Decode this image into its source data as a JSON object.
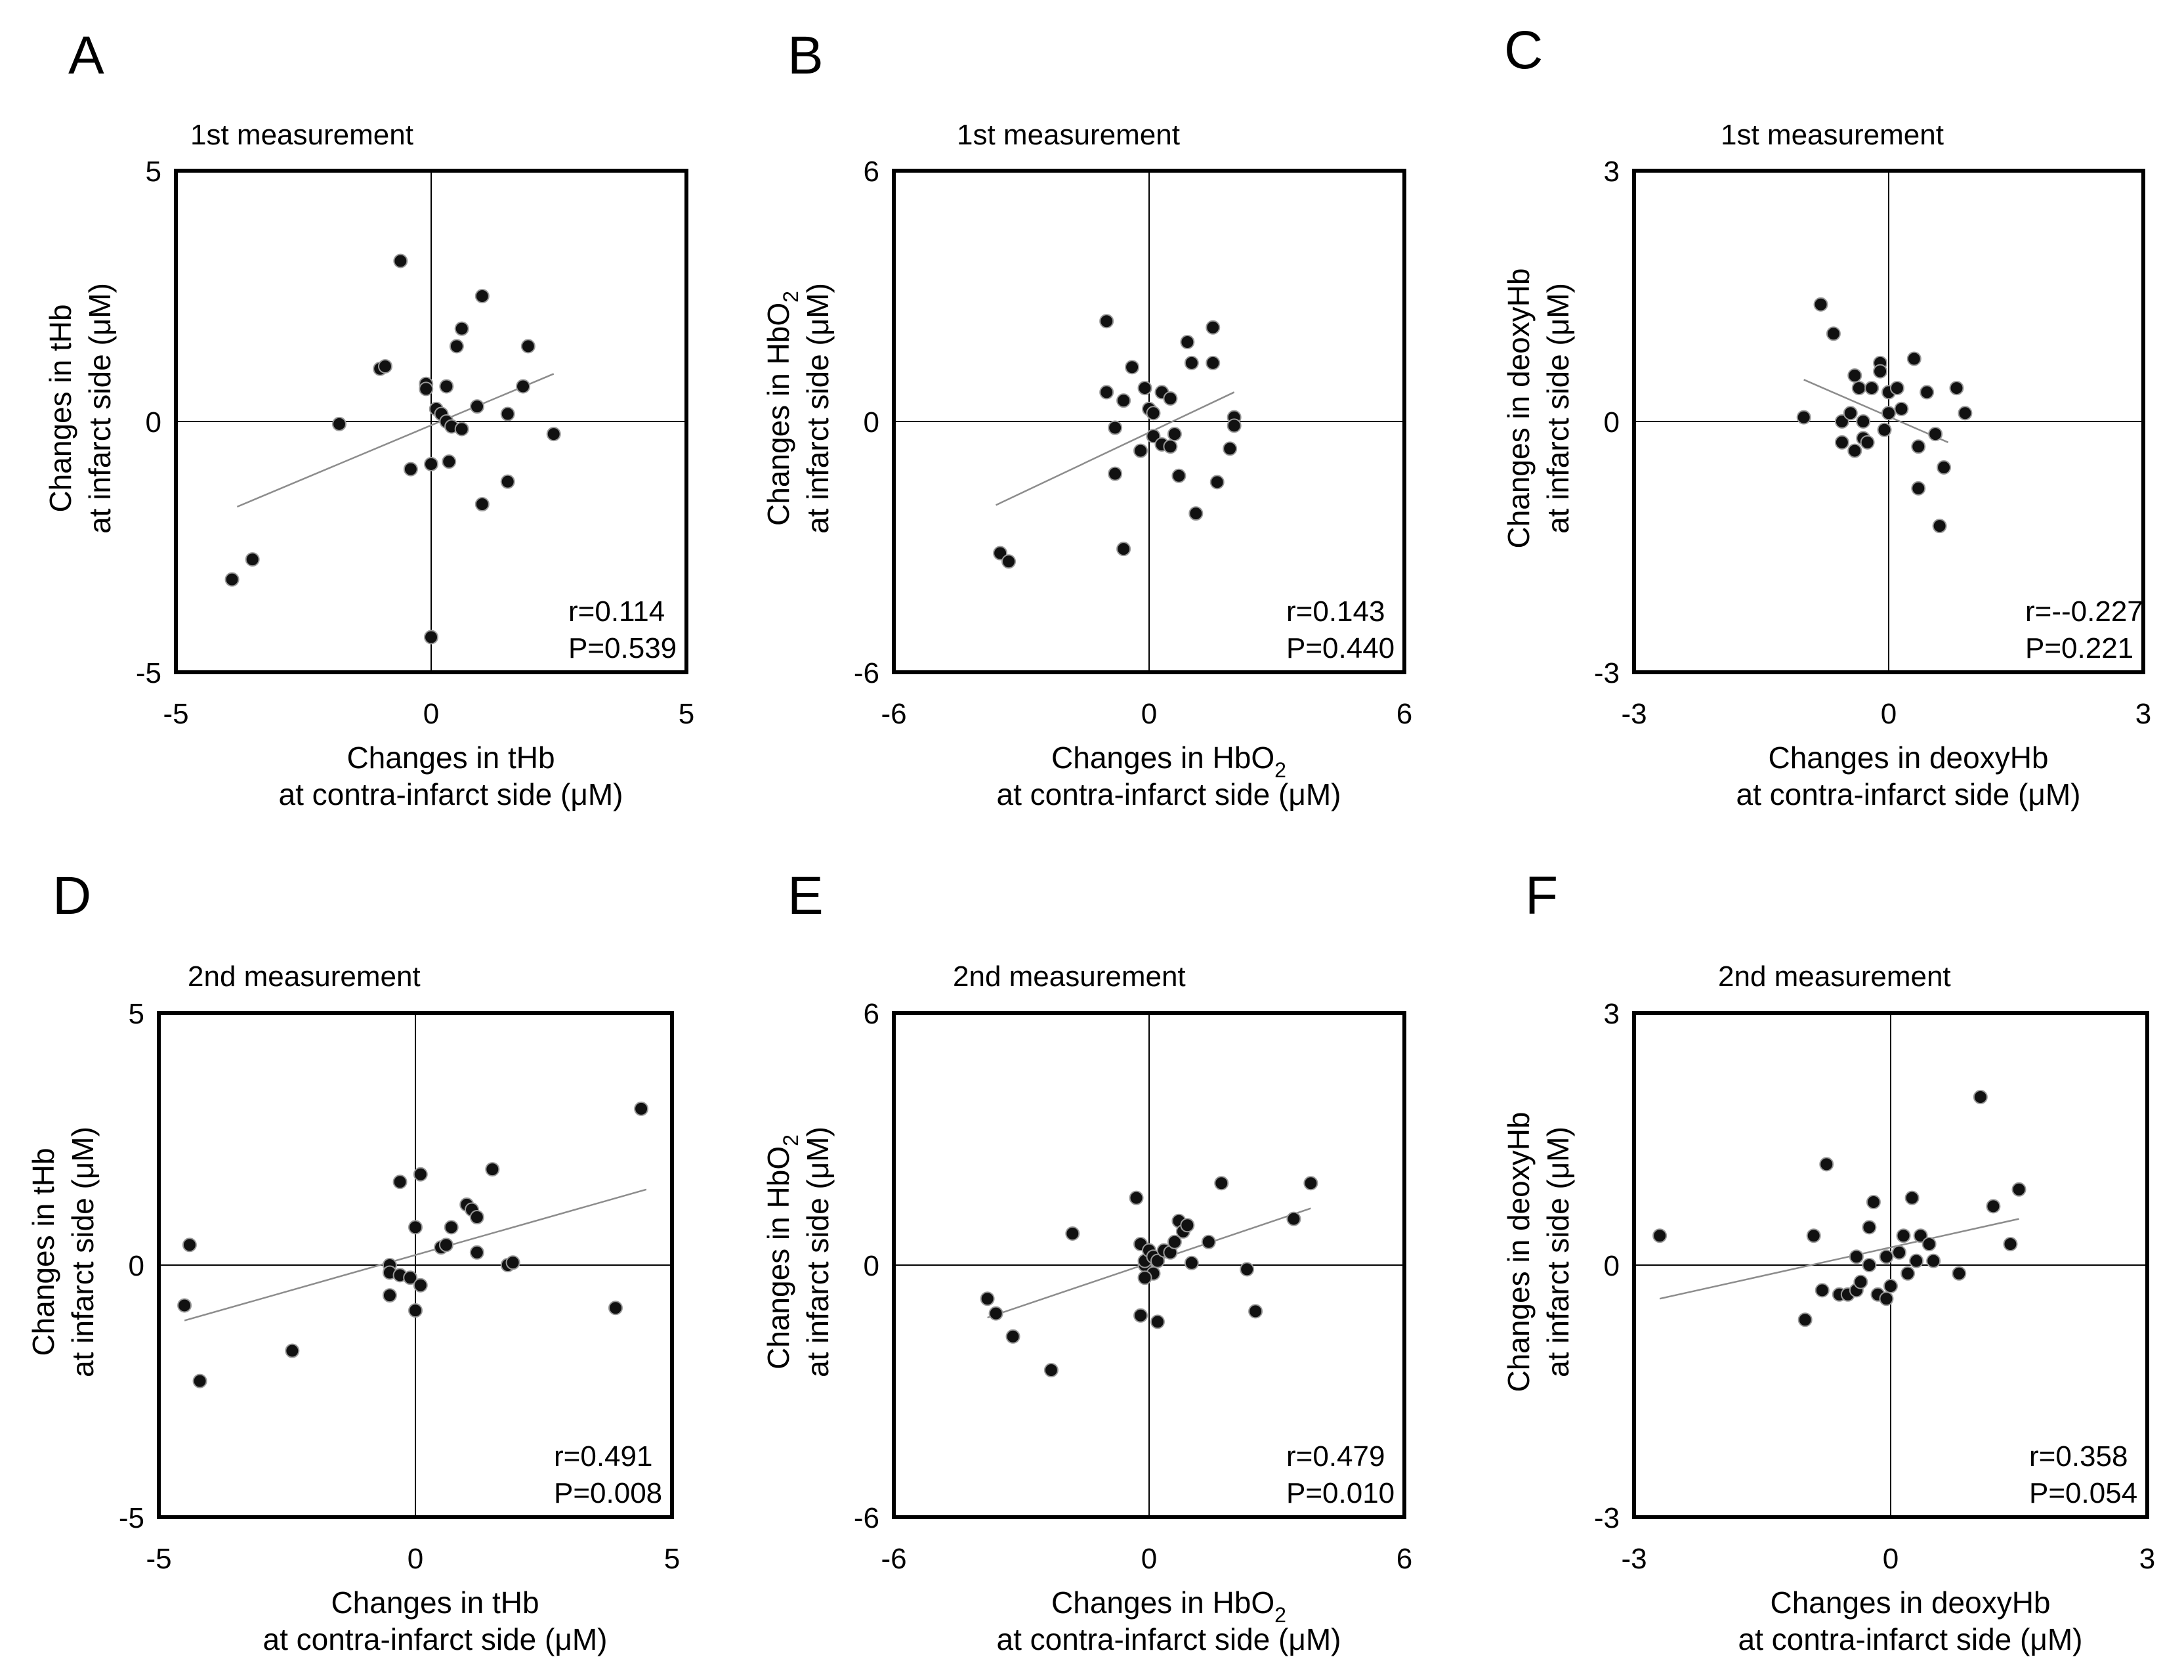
{
  "chart_data": [
    {
      "type": "scatter",
      "panel": "A",
      "subtitle": "1st measurement",
      "xlabel": [
        "Changes in tHb",
        "at contra-infarct side (μM)"
      ],
      "ylabel": [
        "Changes in tHb",
        "at infarct side (μM)"
      ],
      "xlim": [
        -5,
        5
      ],
      "ylim": [
        -5,
        5
      ],
      "xticks": [
        "-5",
        "0",
        "5"
      ],
      "yticks": [
        "5",
        "0",
        "-5"
      ],
      "stats": [
        "r=0.114",
        "P=0.539"
      ],
      "trendline": [
        [
          -3.8,
          -1.7
        ],
        [
          2.4,
          0.95
        ]
      ],
      "points": [
        [
          -3.9,
          -3.15
        ],
        [
          -3.5,
          -2.75
        ],
        [
          -1.8,
          -0.05
        ],
        [
          -0.6,
          3.2
        ],
        [
          -1.0,
          1.05
        ],
        [
          -0.9,
          1.1
        ],
        [
          -0.1,
          0.75
        ],
        [
          -0.1,
          0.65
        ],
        [
          0.1,
          0.25
        ],
        [
          0.2,
          0.15
        ],
        [
          0.3,
          0.7
        ],
        [
          0.3,
          0.0
        ],
        [
          0.4,
          -0.1
        ],
        [
          0.5,
          1.5
        ],
        [
          0.6,
          1.85
        ],
        [
          0.6,
          -0.15
        ],
        [
          0.9,
          0.3
        ],
        [
          1.0,
          2.5
        ],
        [
          1.0,
          -1.65
        ],
        [
          1.5,
          0.15
        ],
        [
          1.5,
          -1.2
        ],
        [
          1.8,
          0.7
        ],
        [
          1.9,
          1.5
        ],
        [
          2.4,
          -0.25
        ],
        [
          -0.4,
          -0.95
        ],
        [
          0.0,
          -0.85
        ],
        [
          0.35,
          -0.8
        ],
        [
          0.0,
          -4.3
        ]
      ]
    },
    {
      "type": "scatter",
      "panel": "B",
      "subtitle": "1st measurement",
      "xlabel": [
        "Changes in HbO",
        "2",
        " at contra-infarct side (μM)"
      ],
      "ylabel": [
        "Changes in HbO",
        "2",
        " at infarct side (μM)"
      ],
      "xlim": [
        -6,
        6
      ],
      "ylim": [
        -6,
        6
      ],
      "xticks": [
        "-6",
        "0",
        "6"
      ],
      "yticks": [
        "6",
        "0",
        "-6"
      ],
      "stats": [
        "r=0.143",
        "P=0.440"
      ],
      "trendline": [
        [
          -3.6,
          -2.0
        ],
        [
          2.0,
          0.7
        ]
      ],
      "points": [
        [
          -3.5,
          -3.15
        ],
        [
          -3.3,
          -3.35
        ],
        [
          -1.0,
          2.4
        ],
        [
          -1.0,
          0.7
        ],
        [
          -0.8,
          -0.15
        ],
        [
          -0.6,
          -3.05
        ],
        [
          -0.6,
          0.5
        ],
        [
          -0.4,
          1.3
        ],
        [
          -0.2,
          -0.7
        ],
        [
          -0.1,
          0.8
        ],
        [
          0.0,
          0.3
        ],
        [
          0.1,
          -0.35
        ],
        [
          0.1,
          0.2
        ],
        [
          0.3,
          0.7
        ],
        [
          0.3,
          -0.55
        ],
        [
          0.5,
          -0.6
        ],
        [
          0.5,
          0.55
        ],
        [
          0.6,
          -0.3
        ],
        [
          0.7,
          -1.3
        ],
        [
          0.9,
          1.9
        ],
        [
          1.0,
          1.4
        ],
        [
          1.1,
          -2.2
        ],
        [
          1.5,
          2.25
        ],
        [
          1.5,
          1.4
        ],
        [
          1.6,
          -1.45
        ],
        [
          1.9,
          -0.65
        ],
        [
          2.0,
          0.1
        ],
        [
          2.0,
          -0.1
        ],
        [
          -0.8,
          -1.25
        ]
      ]
    },
    {
      "type": "scatter",
      "panel": "C",
      "subtitle": "1st measurement",
      "xlabel": [
        "Changes in deoxyHb",
        "at contra-infarct side (μM)"
      ],
      "ylabel": [
        "Changes in deoxyHb",
        "at infarct side (μM)"
      ],
      "xlim": [
        -3,
        3
      ],
      "ylim": [
        -3,
        3
      ],
      "xticks": [
        "-3",
        "0",
        "3"
      ],
      "yticks": [
        "3",
        "0",
        "-3"
      ],
      "stats": [
        "r=--0.227",
        "P=0.221"
      ],
      "trendline": [
        [
          -1.0,
          0.5
        ],
        [
          0.7,
          -0.25
        ]
      ],
      "points": [
        [
          -1.0,
          0.05
        ],
        [
          -0.8,
          1.4
        ],
        [
          -0.65,
          1.05
        ],
        [
          -0.55,
          0.0
        ],
        [
          -0.55,
          -0.25
        ],
        [
          -0.45,
          0.1
        ],
        [
          -0.4,
          0.55
        ],
        [
          -0.4,
          -0.35
        ],
        [
          -0.35,
          0.4
        ],
        [
          -0.3,
          -0.2
        ],
        [
          -0.3,
          0.0
        ],
        [
          -0.25,
          -0.25
        ],
        [
          -0.2,
          0.4
        ],
        [
          -0.1,
          0.7
        ],
        [
          -0.1,
          0.6
        ],
        [
          0.0,
          0.1
        ],
        [
          0.0,
          0.35
        ],
        [
          -0.05,
          -0.1
        ],
        [
          0.1,
          0.4
        ],
        [
          0.15,
          0.15
        ],
        [
          0.3,
          0.75
        ],
        [
          0.35,
          -0.3
        ],
        [
          0.35,
          -0.8
        ],
        [
          0.45,
          0.35
        ],
        [
          0.55,
          -0.15
        ],
        [
          0.6,
          -1.25
        ],
        [
          0.65,
          -0.55
        ],
        [
          0.8,
          0.4
        ],
        [
          0.9,
          0.1
        ]
      ]
    },
    {
      "type": "scatter",
      "panel": "D",
      "subtitle": "2nd measurement",
      "xlabel": [
        "Changes in tHb",
        "at contra-infarct side (μM)"
      ],
      "ylabel": [
        "Changes in tHb",
        "at infarct side (μM)"
      ],
      "xlim": [
        -5,
        5
      ],
      "ylim": [
        -5,
        5
      ],
      "xticks": [
        "-5",
        "0",
        "5"
      ],
      "yticks": [
        "5",
        "0",
        "-5"
      ],
      "stats": [
        "r=0.491",
        "P=0.008"
      ],
      "trendline": [
        [
          -4.5,
          -1.1
        ],
        [
          4.5,
          1.5
        ]
      ],
      "points": [
        [
          -4.5,
          -0.8
        ],
        [
          -4.4,
          0.4
        ],
        [
          -4.2,
          -2.3
        ],
        [
          -2.4,
          -1.7
        ],
        [
          -0.5,
          0.0
        ],
        [
          -0.5,
          -0.15
        ],
        [
          -0.5,
          -0.6
        ],
        [
          -0.3,
          -0.2
        ],
        [
          -0.3,
          1.65
        ],
        [
          -0.1,
          -0.25
        ],
        [
          0.0,
          0.75
        ],
        [
          0.0,
          -0.9
        ],
        [
          0.1,
          -0.4
        ],
        [
          0.1,
          1.8
        ],
        [
          0.5,
          0.35
        ],
        [
          0.6,
          0.4
        ],
        [
          0.7,
          0.75
        ],
        [
          1.0,
          1.2
        ],
        [
          1.1,
          1.1
        ],
        [
          1.2,
          0.25
        ],
        [
          1.2,
          0.95
        ],
        [
          1.5,
          1.9
        ],
        [
          1.8,
          0.0
        ],
        [
          1.9,
          0.05
        ],
        [
          3.9,
          -0.85
        ],
        [
          4.4,
          3.1
        ]
      ]
    },
    {
      "type": "scatter",
      "panel": "E",
      "subtitle": "2nd measurement",
      "xlabel": [
        "Changes in HbO",
        "2",
        " at contra-infarct side (μM)"
      ],
      "ylabel": [
        "Changes in HbO",
        "2",
        " at infarct side (μM)"
      ],
      "xlim": [
        -6,
        6
      ],
      "ylim": [
        -6,
        6
      ],
      "xticks": [
        "-6",
        "0",
        "6"
      ],
      "yticks": [
        "6",
        "0",
        "-6"
      ],
      "stats": [
        "r=0.479",
        "P=0.010"
      ],
      "trendline": [
        [
          -3.8,
          -1.25
        ],
        [
          3.8,
          1.35
        ]
      ],
      "points": [
        [
          -3.8,
          -0.8
        ],
        [
          -3.6,
          -1.15
        ],
        [
          -3.2,
          -1.7
        ],
        [
          -2.3,
          -2.5
        ],
        [
          -1.8,
          0.75
        ],
        [
          -0.3,
          1.6
        ],
        [
          -0.2,
          0.5
        ],
        [
          -0.2,
          -1.2
        ],
        [
          -0.1,
          0.0
        ],
        [
          -0.1,
          0.1
        ],
        [
          0.0,
          0.35
        ],
        [
          0.1,
          0.2
        ],
        [
          0.1,
          -0.2
        ],
        [
          0.2,
          0.1
        ],
        [
          0.2,
          -1.35
        ],
        [
          0.35,
          0.35
        ],
        [
          0.5,
          0.3
        ],
        [
          0.6,
          0.55
        ],
        [
          0.7,
          1.05
        ],
        [
          0.8,
          0.8
        ],
        [
          0.9,
          0.95
        ],
        [
          1.0,
          0.05
        ],
        [
          1.4,
          0.55
        ],
        [
          1.7,
          1.95
        ],
        [
          2.3,
          -0.1
        ],
        [
          2.5,
          -1.1
        ],
        [
          3.4,
          1.1
        ],
        [
          3.8,
          1.95
        ],
        [
          -0.1,
          -0.3
        ]
      ]
    },
    {
      "type": "scatter",
      "panel": "F",
      "subtitle": "2nd measurement",
      "xlabel": [
        "Changes in deoxyHb",
        "at contra-infarct side (μM)"
      ],
      "ylabel": [
        "Changes in deoxyHb",
        "at infarct side (μM)"
      ],
      "xlim": [
        -3,
        3
      ],
      "ylim": [
        -3,
        3
      ],
      "xticks": [
        "-3",
        "0",
        "3"
      ],
      "yticks": [
        "3",
        "0",
        "-3"
      ],
      "stats": [
        "r=0.358",
        "P=0.054"
      ],
      "trendline": [
        [
          -2.7,
          -0.4
        ],
        [
          1.5,
          0.55
        ]
      ],
      "points": [
        [
          -2.7,
          0.35
        ],
        [
          -1.0,
          -0.65
        ],
        [
          -0.9,
          0.35
        ],
        [
          -0.8,
          -0.3
        ],
        [
          -0.75,
          1.2
        ],
        [
          -0.6,
          -0.35
        ],
        [
          -0.5,
          -0.35
        ],
        [
          -0.4,
          -0.3
        ],
        [
          -0.4,
          0.1
        ],
        [
          -0.35,
          -0.2
        ],
        [
          -0.25,
          0.0
        ],
        [
          -0.25,
          0.45
        ],
        [
          -0.2,
          0.75
        ],
        [
          -0.15,
          -0.35
        ],
        [
          -0.05,
          0.1
        ],
        [
          -0.05,
          -0.4
        ],
        [
          0.0,
          -0.25
        ],
        [
          0.1,
          0.15
        ],
        [
          0.15,
          0.35
        ],
        [
          0.2,
          -0.1
        ],
        [
          0.25,
          0.8
        ],
        [
          0.3,
          0.05
        ],
        [
          0.35,
          0.35
        ],
        [
          0.45,
          0.25
        ],
        [
          0.5,
          0.05
        ],
        [
          0.8,
          -0.1
        ],
        [
          1.05,
          2.0
        ],
        [
          1.2,
          0.7
        ],
        [
          1.4,
          0.25
        ],
        [
          1.5,
          0.9
        ]
      ]
    }
  ]
}
